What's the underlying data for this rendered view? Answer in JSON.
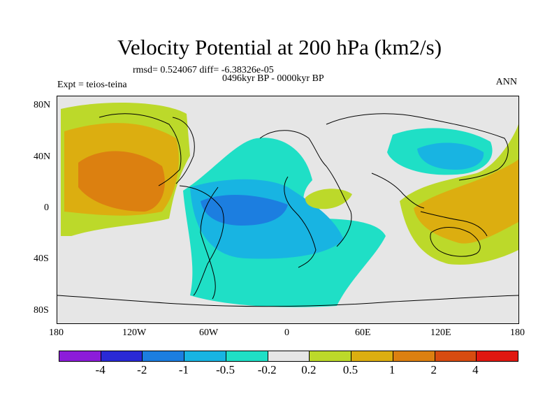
{
  "title": "Velocity Potential at 200 hPa (km2/s)",
  "stats": "rmsd= 0.524067 diff= -6.38326e-05",
  "experiment": "Expt = teios-teina",
  "period": "0496kyr BP - 0000kyr BP",
  "season": "ANN",
  "axes": {
    "y_ticks": [
      "80N",
      "40N",
      "0",
      "40S",
      "80S"
    ],
    "x_ticks": [
      "180",
      "120W",
      "60W",
      "0",
      "60E",
      "120E",
      "180"
    ]
  },
  "colorbar": {
    "colors": [
      "#8c1cd9",
      "#2a2ad6",
      "#1c7ee0",
      "#18b4e2",
      "#1fdfc6",
      "#e6e6e6",
      "#bcd92a",
      "#dcae10",
      "#dc8010",
      "#d74c10",
      "#e01810"
    ],
    "labels": [
      "-4",
      "-2",
      "-1",
      "-0.5",
      "-0.2",
      "0.2",
      "0.5",
      "1",
      "2",
      "4"
    ]
  },
  "colors": {
    "land_outline": "#000000",
    "neutral_background": "#e6e6e6"
  }
}
